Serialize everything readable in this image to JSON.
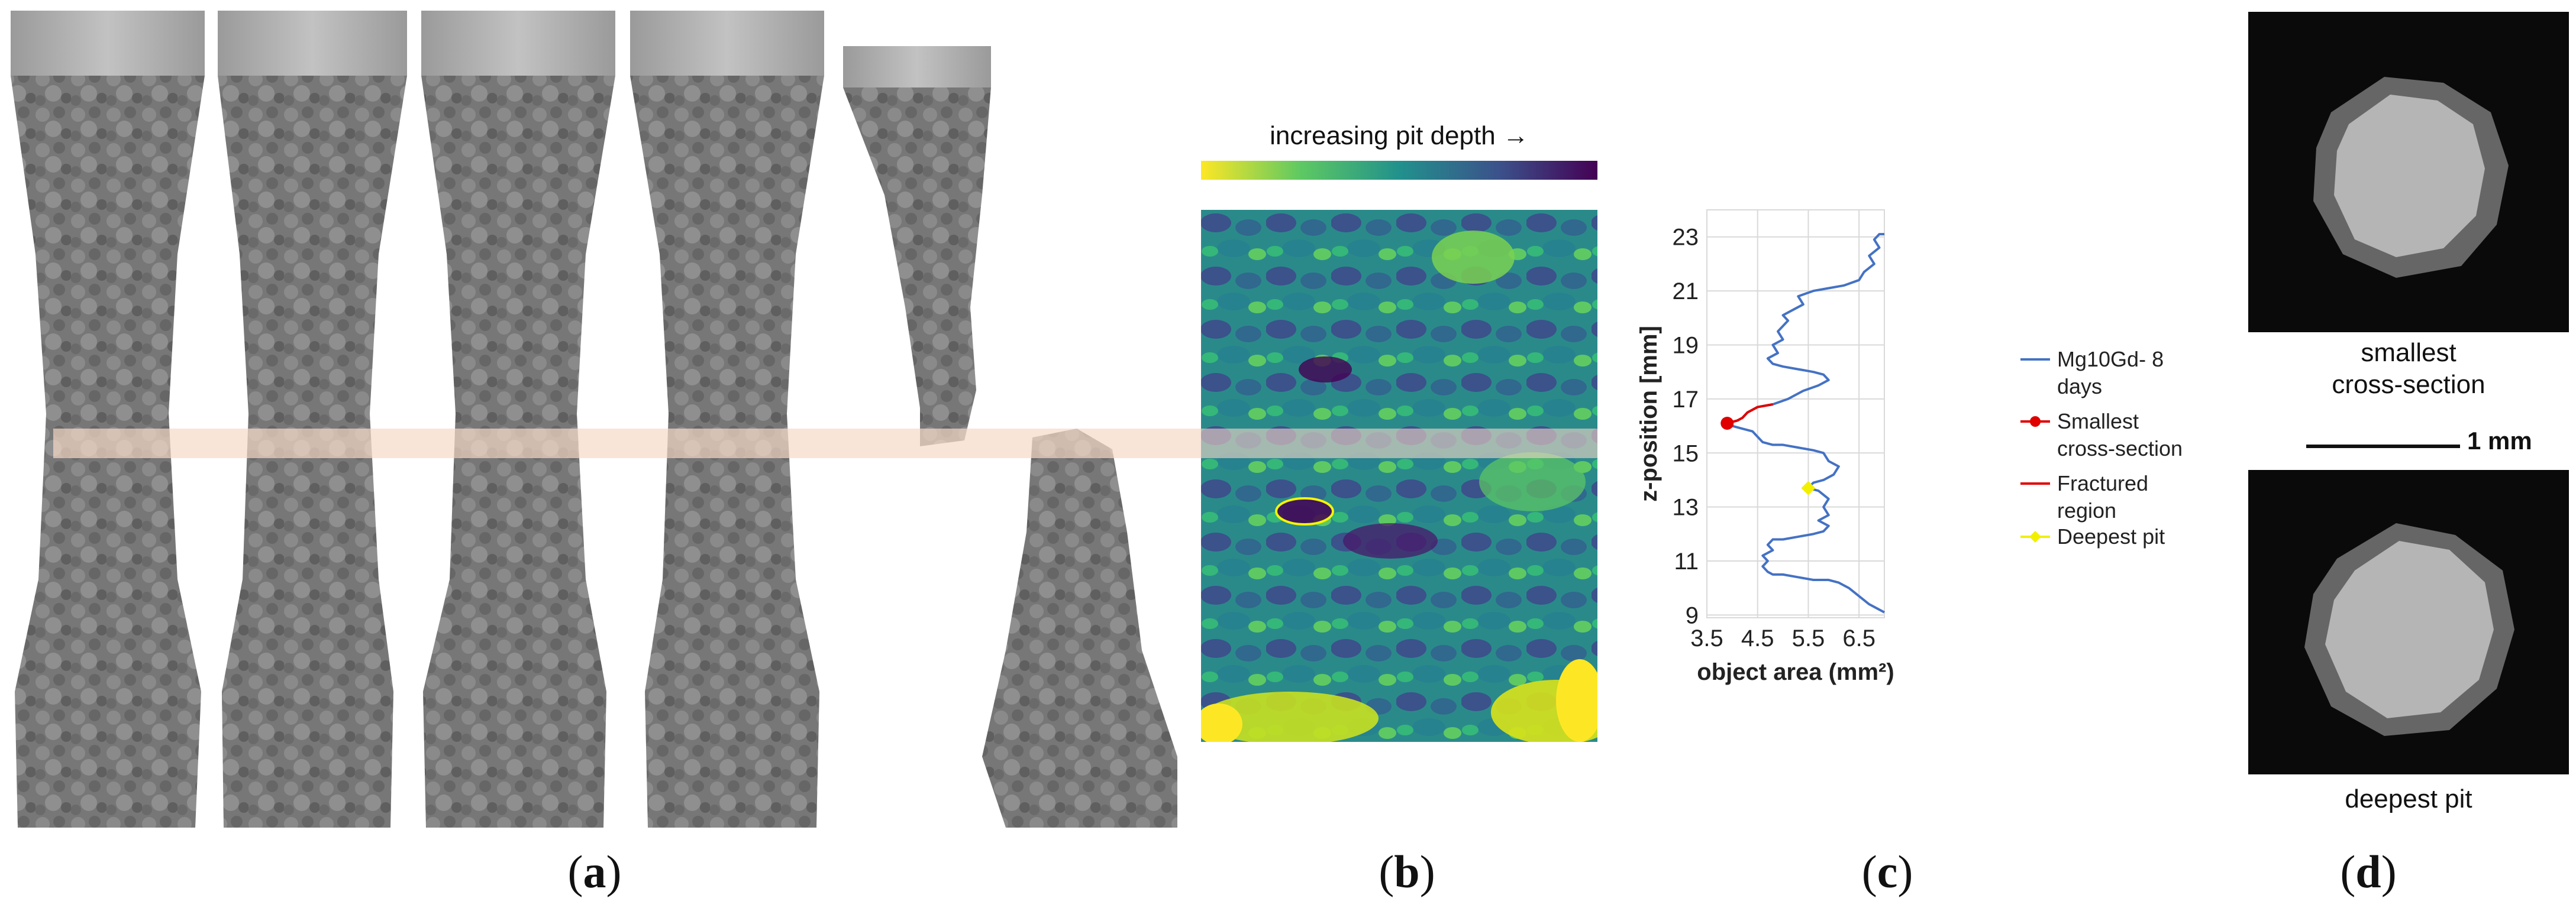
{
  "panels": {
    "a": {
      "label_open": "(",
      "label_letter": "a",
      "label_close": ")"
    },
    "b": {
      "label_open": "(",
      "label_letter": "b",
      "label_close": ")",
      "colorbar_title": "increasing pit depth →"
    },
    "c": {
      "label_open": "(",
      "label_letter": "c",
      "label_close": ")"
    },
    "d": {
      "label_open": "(",
      "label_letter": "d",
      "label_close": ")",
      "top_caption_line1": "smallest",
      "top_caption_line2": "cross-section",
      "bottom_caption": "deepest pit",
      "scale_bar_label": "1 mm"
    }
  },
  "colors": {
    "specimen": "#7a7a7a",
    "highlight_band": "#f6d9c8",
    "series_main": "#4472c4",
    "series_fracture": "#e00000",
    "marker_smallest": "#e00000",
    "marker_deepest": "#f2f000",
    "ellipse": "#f5f500"
  },
  "chart_data": {
    "type": "line",
    "xlabel": "object area (mm²)",
    "ylabel": "z-position [mm]",
    "xlim": [
      3.5,
      7.0
    ],
    "ylim": [
      8.9,
      24.0
    ],
    "xticks": [
      "3.5",
      "4.5",
      "5.5",
      "6.5"
    ],
    "yticks": [
      "9",
      "11",
      "13",
      "15",
      "17",
      "19",
      "21",
      "23"
    ],
    "grid": true,
    "legend_position": "right",
    "series": [
      {
        "name": "Mg10Gd- 8 days",
        "color": "#4472c4",
        "points": [
          [
            7.0,
            9.1
          ],
          [
            6.7,
            9.4
          ],
          [
            6.5,
            9.7
          ],
          [
            6.3,
            10.0
          ],
          [
            6.1,
            10.2
          ],
          [
            5.9,
            10.3
          ],
          [
            5.6,
            10.3
          ],
          [
            5.3,
            10.4
          ],
          [
            5.0,
            10.5
          ],
          [
            4.8,
            10.5
          ],
          [
            4.7,
            10.6
          ],
          [
            4.6,
            10.8
          ],
          [
            4.7,
            11.0
          ],
          [
            4.6,
            11.2
          ],
          [
            4.8,
            11.4
          ],
          [
            4.7,
            11.6
          ],
          [
            4.8,
            11.8
          ],
          [
            5.0,
            11.8
          ],
          [
            5.3,
            11.9
          ],
          [
            5.6,
            12.0
          ],
          [
            5.8,
            12.1
          ],
          [
            5.9,
            12.3
          ],
          [
            5.7,
            12.5
          ],
          [
            5.9,
            12.7
          ],
          [
            5.8,
            13.0
          ],
          [
            5.9,
            13.3
          ],
          [
            5.7,
            13.6
          ],
          [
            5.5,
            13.7
          ],
          [
            5.6,
            13.9
          ],
          [
            5.8,
            14.0
          ],
          [
            6.0,
            14.2
          ],
          [
            6.1,
            14.5
          ],
          [
            5.9,
            14.7
          ],
          [
            5.8,
            15.0
          ],
          [
            5.6,
            15.1
          ],
          [
            5.3,
            15.2
          ],
          [
            5.0,
            15.3
          ],
          [
            4.8,
            15.3
          ],
          [
            4.6,
            15.4
          ],
          [
            4.5,
            15.6
          ],
          [
            4.4,
            15.8
          ],
          [
            4.2,
            15.9
          ],
          [
            4.0,
            16.0
          ],
          [
            3.9,
            16.1
          ],
          [
            4.1,
            16.2
          ],
          [
            4.2,
            16.3
          ],
          [
            4.3,
            16.5
          ],
          [
            4.5,
            16.7
          ],
          [
            4.8,
            16.8
          ],
          [
            5.1,
            17.0
          ],
          [
            5.4,
            17.3
          ],
          [
            5.7,
            17.5
          ],
          [
            5.9,
            17.7
          ],
          [
            5.8,
            17.9
          ],
          [
            5.6,
            18.0
          ],
          [
            5.3,
            18.1
          ],
          [
            5.0,
            18.2
          ],
          [
            4.8,
            18.3
          ],
          [
            4.7,
            18.5
          ],
          [
            4.9,
            18.7
          ],
          [
            4.8,
            19.0
          ],
          [
            5.0,
            19.2
          ],
          [
            4.9,
            19.5
          ],
          [
            5.0,
            19.7
          ],
          [
            5.1,
            19.9
          ],
          [
            5.0,
            20.1
          ],
          [
            5.2,
            20.3
          ],
          [
            5.4,
            20.5
          ],
          [
            5.3,
            20.8
          ],
          [
            5.6,
            21.0
          ],
          [
            5.9,
            21.1
          ],
          [
            6.2,
            21.2
          ],
          [
            6.5,
            21.4
          ],
          [
            6.6,
            21.7
          ],
          [
            6.8,
            22.0
          ],
          [
            6.7,
            22.3
          ],
          [
            6.9,
            22.6
          ],
          [
            6.8,
            22.9
          ],
          [
            6.9,
            23.1
          ],
          [
            7.0,
            23.1
          ]
        ]
      },
      {
        "name": "Smallest cross-section",
        "color": "#e00000",
        "marker": "circle",
        "points": [
          [
            3.9,
            16.1
          ]
        ]
      },
      {
        "name": "Fractured region",
        "color": "#e00000",
        "points": [
          [
            3.9,
            16.1
          ],
          [
            4.1,
            16.2
          ],
          [
            4.2,
            16.3
          ],
          [
            4.3,
            16.5
          ],
          [
            4.5,
            16.7
          ],
          [
            4.8,
            16.8
          ]
        ]
      },
      {
        "name": "Deepest pit",
        "color": "#f2f000",
        "marker": "diamond",
        "points": [
          [
            5.5,
            13.7
          ]
        ]
      }
    ],
    "legend": [
      {
        "label_line1": "Mg10Gd- 8",
        "label_line2": "days"
      },
      {
        "label_line1": "Smallest",
        "label_line2": "cross-section"
      },
      {
        "label_line1": "Fractured",
        "label_line2": "region"
      },
      {
        "label_line1": "Deepest pit",
        "label_line2": ""
      }
    ]
  }
}
